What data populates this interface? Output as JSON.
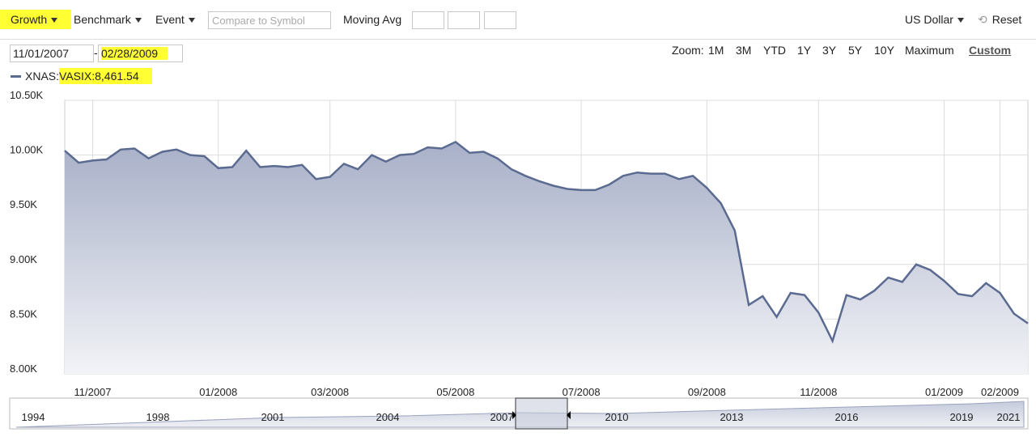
{
  "toolbar": {
    "growth": "Growth",
    "benchmark": "Benchmark",
    "event": "Event",
    "compare_placeholder": "Compare to Symbol",
    "moving_avg": "Moving Avg",
    "currency": "US Dollar",
    "reset": "Reset"
  },
  "date_range": {
    "start": "11/01/2007",
    "separator": "-",
    "end": "02/28/2009"
  },
  "zoom": {
    "label": "Zoom:",
    "options": [
      "1M",
      "3M",
      "YTD",
      "1Y",
      "3Y",
      "5Y",
      "10Y",
      "Maximum",
      "Custom"
    ]
  },
  "legend": {
    "symbol": "XNAS:",
    "value": "VASIX:8,461.54"
  },
  "chart_data": {
    "type": "area",
    "ylim": [
      8000,
      10500
    ],
    "yticks": [
      {
        "value": 8000,
        "label": "8.00K"
      },
      {
        "value": 8500,
        "label": "8.50K"
      },
      {
        "value": 9000,
        "label": "9.00K"
      },
      {
        "value": 9500,
        "label": "9.50K"
      },
      {
        "value": 10000,
        "label": "10.00K"
      },
      {
        "value": 10500,
        "label": "10.50K"
      }
    ],
    "categories": [
      null,
      null,
      "11/2007",
      null,
      null,
      null,
      null,
      null,
      null,
      null,
      null,
      "01/2008",
      null,
      null,
      null,
      null,
      null,
      null,
      null,
      "03/2008",
      null,
      null,
      null,
      null,
      null,
      null,
      null,
      null,
      "05/2008",
      null,
      null,
      null,
      null,
      null,
      null,
      null,
      null,
      "07/2008",
      null,
      null,
      null,
      null,
      null,
      null,
      null,
      null,
      "09/2008",
      null,
      null,
      null,
      null,
      null,
      null,
      null,
      "11/2008",
      null,
      null,
      null,
      null,
      null,
      null,
      null,
      null,
      "01/2009",
      null,
      null,
      null,
      "02/2009",
      null,
      null
    ],
    "series": [
      {
        "color": "#5a6a90",
        "values": [
          10040,
          9930,
          9950,
          9960,
          10050,
          10060,
          9970,
          10030,
          10050,
          10000,
          9990,
          9880,
          9890,
          10040,
          9890,
          9900,
          9890,
          9910,
          9780,
          9800,
          9920,
          9870,
          10000,
          9940,
          10000,
          10010,
          10070,
          10060,
          10120,
          10020,
          10030,
          9970,
          9870,
          9810,
          9760,
          9720,
          9690,
          9680,
          9680,
          9730,
          9810,
          9840,
          9830,
          9830,
          9780,
          9810,
          9700,
          9560,
          9310,
          8630,
          8710,
          8520,
          8740,
          8720,
          8560,
          8300,
          8720,
          8680,
          8760,
          8880,
          8840,
          9000,
          8950,
          8850,
          8730,
          8710,
          8830,
          8740,
          8550,
          8461.54
        ]
      }
    ],
    "grid": true
  },
  "navigator": {
    "labels": [
      "1994",
      "1998",
      "2001",
      "2004",
      "2007",
      "2010",
      "2013",
      "2016",
      "2019",
      "2021"
    ]
  }
}
